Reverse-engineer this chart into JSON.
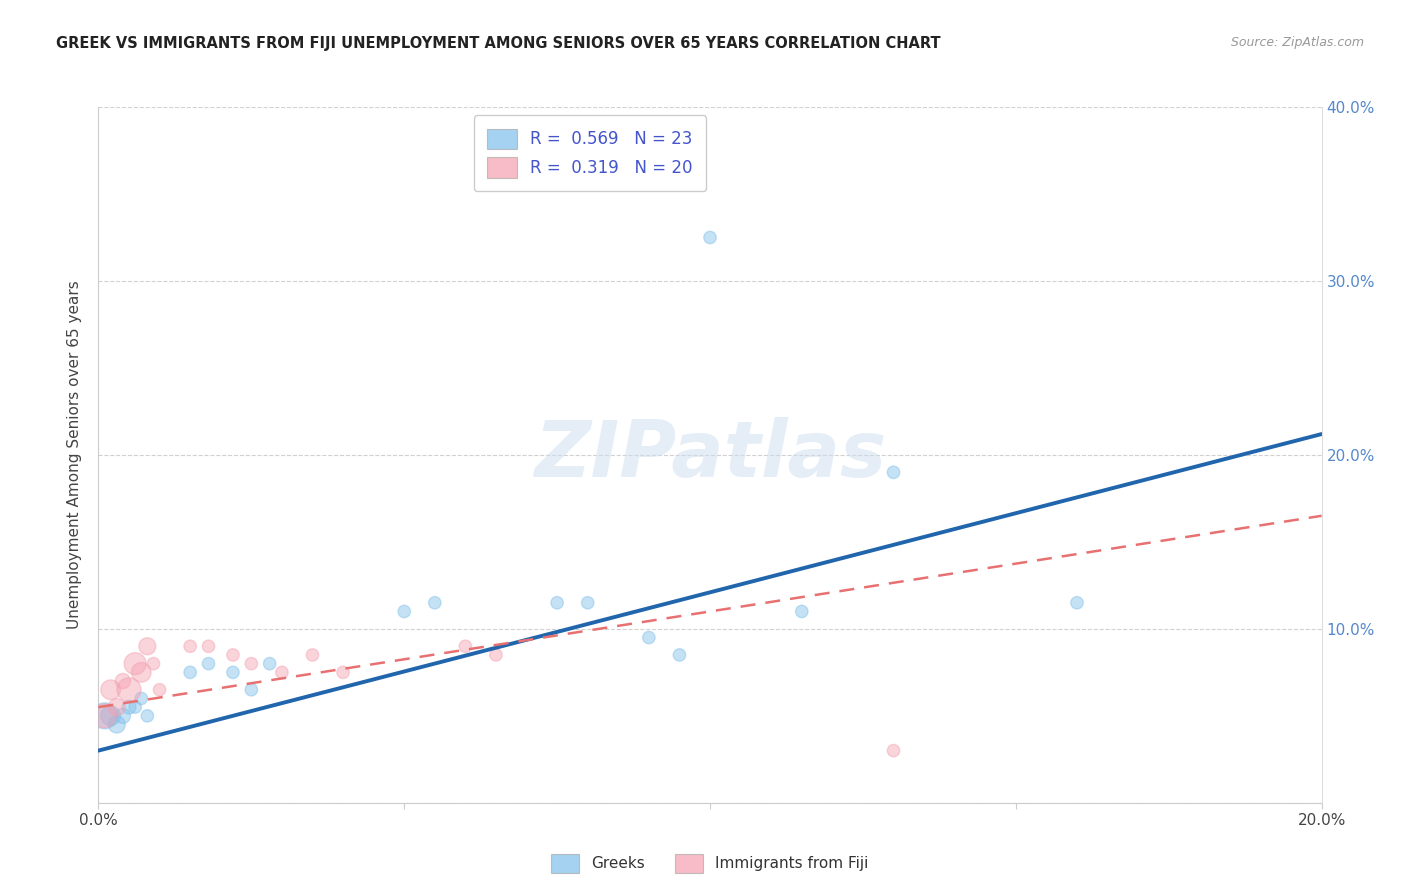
{
  "title": "GREEK VS IMMIGRANTS FROM FIJI UNEMPLOYMENT AMONG SENIORS OVER 65 YEARS CORRELATION CHART",
  "source": "Source: ZipAtlas.com",
  "ylabel": "Unemployment Among Seniors over 65 years",
  "xlim": [
    0.0,
    0.2
  ],
  "ylim": [
    0.0,
    0.4
  ],
  "greek_R": "0.569",
  "greek_N": "23",
  "fiji_R": "0.319",
  "fiji_N": "20",
  "blue_color": "#7fbfea",
  "pink_color": "#f4a0b0",
  "blue_line_color": "#2166ac",
  "pink_line_color": "#e87070",
  "legend_text_color": "#4455cc",
  "blue_line_y0": 0.03,
  "blue_line_y1": 0.212,
  "pink_line_y0": 0.055,
  "pink_line_y1": 0.165,
  "greek_x": [
    0.001,
    0.002,
    0.003,
    0.004,
    0.005,
    0.006,
    0.007,
    0.008,
    0.015,
    0.018,
    0.022,
    0.025,
    0.028,
    0.05,
    0.055,
    0.075,
    0.08,
    0.09,
    0.095,
    0.1,
    0.115,
    0.13,
    0.16
  ],
  "greek_y": [
    0.05,
    0.05,
    0.045,
    0.05,
    0.055,
    0.055,
    0.06,
    0.05,
    0.075,
    0.08,
    0.075,
    0.065,
    0.08,
    0.11,
    0.115,
    0.115,
    0.115,
    0.095,
    0.085,
    0.325,
    0.11,
    0.19,
    0.115
  ],
  "greek_size": [
    350,
    200,
    150,
    120,
    100,
    80,
    80,
    80,
    80,
    80,
    80,
    80,
    80,
    80,
    80,
    80,
    80,
    80,
    80,
    80,
    80,
    80,
    80
  ],
  "fiji_x": [
    0.001,
    0.002,
    0.003,
    0.004,
    0.005,
    0.006,
    0.007,
    0.008,
    0.009,
    0.01,
    0.015,
    0.018,
    0.022,
    0.025,
    0.03,
    0.035,
    0.04,
    0.06,
    0.065,
    0.13
  ],
  "fiji_y": [
    0.05,
    0.065,
    0.055,
    0.07,
    0.065,
    0.08,
    0.075,
    0.09,
    0.08,
    0.065,
    0.09,
    0.09,
    0.085,
    0.08,
    0.075,
    0.085,
    0.075,
    0.09,
    0.085,
    0.03
  ],
  "fiji_size": [
    300,
    200,
    150,
    120,
    300,
    250,
    200,
    150,
    80,
    80,
    80,
    80,
    80,
    80,
    80,
    80,
    80,
    80,
    80,
    80
  ]
}
